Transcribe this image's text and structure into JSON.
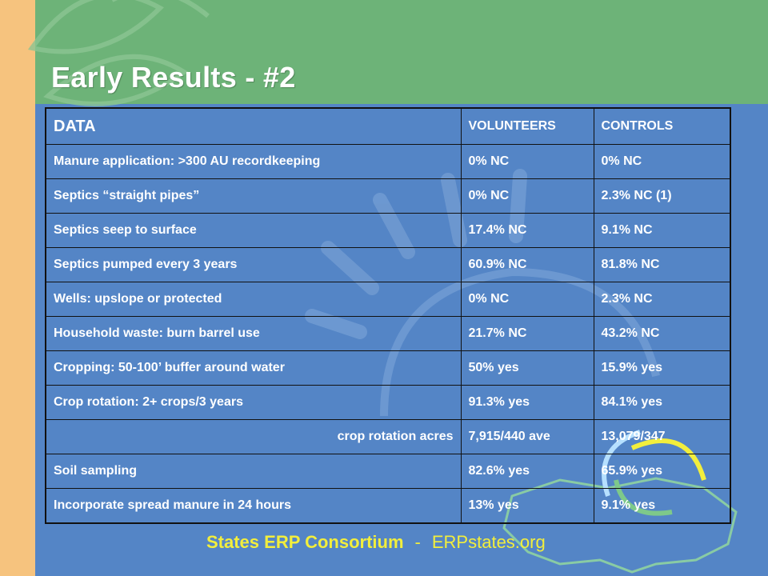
{
  "title": "Early Results - #2",
  "table": {
    "headers": [
      "DATA",
      "VOLUNTEERS",
      "CONTROLS"
    ],
    "rows": [
      [
        "Manure application: >300 AU recordkeeping",
        "0% NC",
        "0% NC"
      ],
      [
        "Septics “straight pipes”",
        "0% NC",
        "2.3% NC (1)"
      ],
      [
        "Septics seep to surface",
        "17.4% NC",
        "9.1% NC"
      ],
      [
        "Septics pumped every 3 years",
        "60.9% NC",
        "81.8% NC"
      ],
      [
        "Wells: upslope or protected",
        "0% NC",
        "2.3% NC"
      ],
      [
        "Household waste: burn barrel use",
        "21.7% NC",
        "43.2% NC"
      ],
      [
        "Cropping: 50-100’ buffer around water",
        "50% yes",
        "15.9% yes"
      ],
      [
        "Crop rotation: 2+ crops/3 years",
        "91.3% yes",
        "84.1% yes"
      ],
      [
        "crop rotation acres",
        "7,915/440 ave",
        "13,079/347"
      ],
      [
        "Soil sampling",
        "82.6% yes",
        "65.9% yes"
      ],
      [
        "Incorporate spread manure in 24 hours",
        "13% yes",
        "9.1% yes"
      ]
    ]
  },
  "footer": {
    "organization": "States ERP Consortium",
    "separator": "-",
    "website": "ERPstates.org"
  },
  "colors": {
    "background": "#5485c6",
    "top_band": "#6db378",
    "left_strip": "#f6c37e",
    "footer_text": "#f2ee3c"
  }
}
